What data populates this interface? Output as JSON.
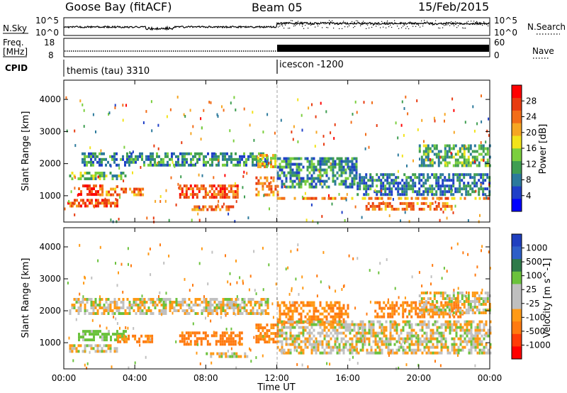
{
  "header": {
    "station": "Goose Bay (fitACF)",
    "beam": "Beam 05",
    "date": "15/Feb/2015"
  },
  "aux_panels": {
    "nsky": {
      "label": "N.Sky",
      "y_tick_top": "10^5",
      "y_tick_bottom": "10^0",
      "right_label": "N.Search",
      "right_tick_top": "10^5",
      "right_tick_bottom": "10^0"
    },
    "freq": {
      "label_line1": "Freq.",
      "label_line2": "[MHz]",
      "y_tick_top": "18",
      "y_tick_bottom": "8",
      "right_label": "Nave",
      "right_tick_top": "60",
      "right_tick_bottom": "0"
    },
    "cpid": {
      "label": "CPID",
      "segments": [
        {
          "start_hour": 0,
          "end_hour": 12,
          "text": "themis (tau) 3310"
        },
        {
          "start_hour": 12,
          "end_hour": 24,
          "text": "icescon -1200"
        }
      ]
    }
  },
  "colors": {
    "power_scale": [
      "#0000ff",
      "#1f3fc8",
      "#2c7a9c",
      "#3f9e52",
      "#7bcf3e",
      "#f2e31b",
      "#f6a623",
      "#f26d18",
      "#e83b10",
      "#ff0000"
    ],
    "velocity_scale": [
      "#1f3fbf",
      "#2e5fc8",
      "#2f7a4a",
      "#6bc23c",
      "#bfbfbf",
      "#bfbfbf",
      "#ff9a16",
      "#ff7a10",
      "#ff3c08",
      "#ff0000"
    ],
    "ground_scatter": "#c0c0c0"
  },
  "chart_data": [
    {
      "type": "heatmap",
      "name": "power",
      "xlabel": "",
      "ylabel": "Slant Range [km]",
      "xlim_hours": [
        0,
        24
      ],
      "ylim_km": [
        180,
        4600
      ],
      "y_ticks": [
        1000,
        2000,
        3000,
        4000
      ],
      "x_ticks": [
        "00:00",
        "04:00",
        "08:00",
        "12:00",
        "16:00",
        "20:00",
        "00:00"
      ],
      "colorbar": {
        "label": "Power [dB]",
        "ticks": [
          "4",
          "8",
          "12",
          "16",
          "20",
          "24",
          "28"
        ],
        "range": [
          0,
          30
        ]
      },
      "echo_regions": [
        {
          "t0": 0.3,
          "t1": 3.5,
          "r0": 1500,
          "r1": 1750,
          "level": 12
        },
        {
          "t0": 1.0,
          "t1": 11.5,
          "r0": 1950,
          "r1": 2350,
          "level": 9
        },
        {
          "t0": 0.8,
          "t1": 2.2,
          "r0": 1000,
          "r1": 1350,
          "level": 26
        },
        {
          "t0": 2.0,
          "t1": 4.5,
          "r0": 1050,
          "r1": 1250,
          "level": 22
        },
        {
          "t0": 6.5,
          "t1": 9.8,
          "r0": 950,
          "r1": 1350,
          "level": 24
        },
        {
          "t0": 0.2,
          "t1": 3.0,
          "r0": 700,
          "r1": 900,
          "level": 24
        },
        {
          "t0": 7.2,
          "t1": 9.5,
          "r0": 550,
          "r1": 700,
          "level": 22
        },
        {
          "t0": 10.8,
          "t1": 12.0,
          "r0": 1000,
          "r1": 1600,
          "level": 22
        },
        {
          "t0": 10.9,
          "t1": 11.9,
          "r0": 1900,
          "r1": 2300,
          "level": 18
        },
        {
          "t0": 12.0,
          "t1": 16.5,
          "r0": 1300,
          "r1": 2200,
          "level": 9
        },
        {
          "t0": 16.5,
          "t1": 24.0,
          "r0": 1000,
          "r1": 1700,
          "level": 8
        },
        {
          "t0": 12.0,
          "t1": 24.0,
          "r0": 880,
          "r1": 960,
          "level": 21
        },
        {
          "t0": 17.0,
          "t1": 21.8,
          "r0": 600,
          "r1": 800,
          "level": 22
        },
        {
          "t0": 20.0,
          "t1": 24.0,
          "r0": 1900,
          "r1": 2600,
          "level": 11
        }
      ]
    },
    {
      "type": "heatmap",
      "name": "velocity",
      "xlabel": "Time UT",
      "ylabel": "Slant Range [km]",
      "xlim_hours": [
        0,
        24
      ],
      "ylim_km": [
        180,
        4600
      ],
      "y_ticks": [
        1000,
        2000,
        3000,
        4000
      ],
      "x_ticks": [
        "00:00",
        "04:00",
        "08:00",
        "12:00",
        "16:00",
        "20:00",
        "00:00"
      ],
      "colorbar": {
        "label": "Velocity [m s^-1]",
        "ticks": [
          "1000",
          "500",
          "100",
          "25",
          "-25",
          "-100",
          "-500",
          "-1000"
        ],
        "range": [
          -1000,
          1000
        ]
      },
      "echo_regions": [
        {
          "t0": 0.3,
          "t1": 11.5,
          "r0": 1900,
          "r1": 2400,
          "level": 0
        },
        {
          "t0": 0.8,
          "t1": 3.5,
          "r0": 1050,
          "r1": 1400,
          "level": 150
        },
        {
          "t0": 3.0,
          "t1": 5.0,
          "r0": 1000,
          "r1": 1250,
          "level": -150
        },
        {
          "t0": 6.5,
          "t1": 10.0,
          "r0": 950,
          "r1": 1350,
          "level": -200
        },
        {
          "t0": 0.3,
          "t1": 3.0,
          "r0": 700,
          "r1": 950,
          "level": 0
        },
        {
          "t0": 8.0,
          "t1": 10.5,
          "r0": 550,
          "r1": 700,
          "level": 0
        },
        {
          "t0": 10.8,
          "t1": 12.0,
          "r0": 1000,
          "r1": 1600,
          "level": -150
        },
        {
          "t0": 12.0,
          "t1": 16.0,
          "r0": 1600,
          "r1": 2300,
          "level": -120
        },
        {
          "t0": 12.0,
          "t1": 24.0,
          "r0": 700,
          "r1": 1700,
          "level": 0
        },
        {
          "t0": 17.5,
          "t1": 22.5,
          "r0": 1800,
          "r1": 2300,
          "level": -150
        },
        {
          "t0": 20.0,
          "t1": 24.0,
          "r0": 1900,
          "r1": 2600,
          "level": 0
        }
      ]
    }
  ]
}
